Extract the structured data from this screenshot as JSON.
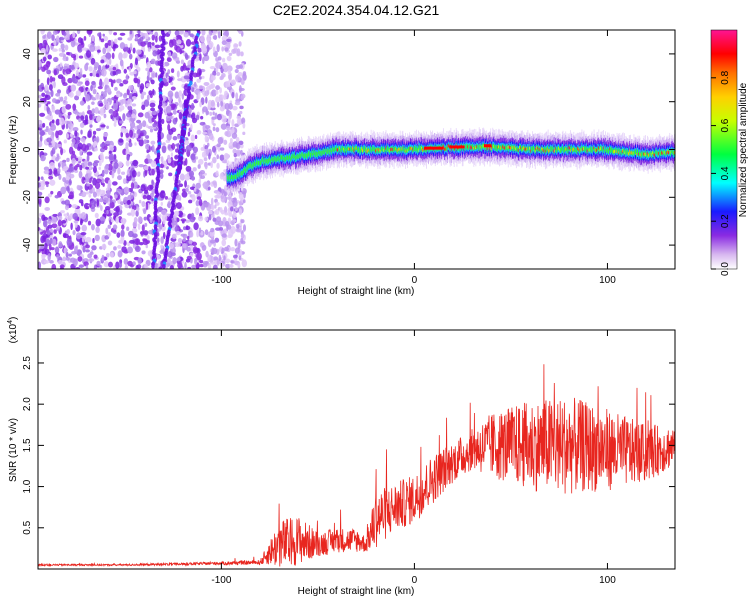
{
  "title": "C2E2.2024.354.04.12.G21",
  "chart_data": [
    {
      "type": "heatmap",
      "xlabel": "Height of straight line (km)",
      "ylabel": "Frequency (Hz)",
      "xlim": [
        -195,
        135
      ],
      "ylim": [
        -50,
        50
      ],
      "xticks": [
        -100,
        0,
        100
      ],
      "yticks": [
        -40,
        -20,
        0,
        20,
        40
      ],
      "colorbar": {
        "label": "Normalized spectral amplitude",
        "range": [
          0,
          1
        ],
        "ticks": [
          0.0,
          0.2,
          0.4,
          0.6,
          0.8
        ],
        "colors": [
          "#ffffff",
          "#8a2be2",
          "#0000ff",
          "#00ffff",
          "#00ff00",
          "#ffff00",
          "#ff7f00",
          "#ff0000",
          "#ff1493"
        ]
      },
      "signal_trace": {
        "description_points_km_hz": [
          [
            -95,
            -12
          ],
          [
            -80,
            -5
          ],
          [
            -60,
            -3
          ],
          [
            -40,
            0
          ],
          [
            -20,
            0
          ],
          [
            0,
            0
          ],
          [
            20,
            1
          ],
          [
            40,
            1
          ],
          [
            60,
            0
          ],
          [
            80,
            0
          ],
          [
            100,
            0
          ],
          [
            120,
            -2
          ],
          [
            135,
            -1
          ]
        ]
      }
    },
    {
      "type": "line",
      "xlabel": "Height of straight line (km)",
      "ylabel": "SNR (10 * v/v)",
      "yscale_label": "(x10",
      "yscale_exp": "4",
      "xlim": [
        -195,
        135
      ],
      "ylim": [
        0,
        2.9
      ],
      "xticks": [
        -100,
        0,
        100
      ],
      "yticks": [
        0.5,
        1.0,
        1.5,
        2.0,
        2.5
      ],
      "series_color": "#e8261f",
      "envelope": {
        "x": [
          -195,
          -150,
          -120,
          -100,
          -80,
          -75,
          -70,
          -60,
          -50,
          -40,
          -30,
          -25,
          -20,
          -10,
          0,
          10,
          20,
          30,
          40,
          60,
          80,
          100,
          120,
          135
        ],
        "mean": [
          0.05,
          0.05,
          0.06,
          0.07,
          0.08,
          0.2,
          0.3,
          0.35,
          0.3,
          0.35,
          0.35,
          0.3,
          0.6,
          0.75,
          0.85,
          1.1,
          1.3,
          1.45,
          1.5,
          1.5,
          1.5,
          1.45,
          1.4,
          1.5
        ],
        "amp": [
          0.01,
          0.01,
          0.015,
          0.02,
          0.03,
          0.15,
          0.3,
          0.3,
          0.15,
          0.15,
          0.15,
          0.1,
          0.35,
          0.3,
          0.3,
          0.3,
          0.25,
          0.25,
          0.4,
          0.55,
          0.6,
          0.5,
          0.35,
          0.25
        ]
      }
    }
  ]
}
